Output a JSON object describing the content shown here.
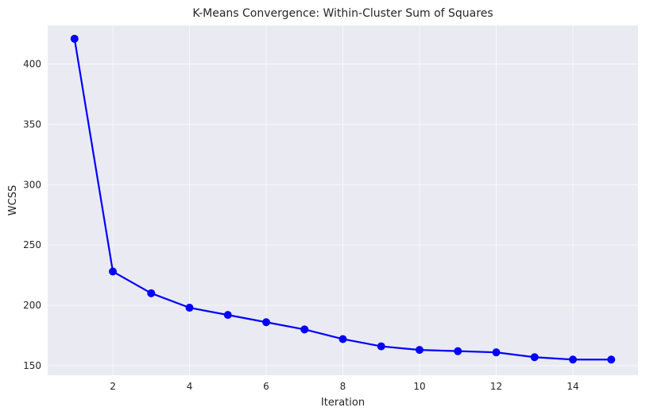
{
  "chart_data": {
    "type": "line",
    "title": "K-Means Convergence: Within-Cluster Sum of Squares",
    "xlabel": "Iteration",
    "ylabel": "WCSS",
    "xlim": [
      0.3,
      15.7
    ],
    "ylim": [
      142,
      432
    ],
    "xticks": [
      2,
      4,
      6,
      8,
      10,
      12,
      14
    ],
    "yticks": [
      150,
      200,
      250,
      300,
      350,
      400
    ],
    "grid": true,
    "series": [
      {
        "color": "#0000ff",
        "marker": "circle",
        "x": [
          1,
          2,
          3,
          4,
          5,
          6,
          7,
          8,
          9,
          10,
          11,
          12,
          13,
          14,
          15
        ],
        "y": [
          421,
          228,
          210,
          198,
          192,
          186,
          180,
          172,
          166,
          163,
          162,
          161,
          157,
          155,
          155
        ]
      }
    ],
    "colors": {
      "plot_background": "#eaeaf2",
      "grid": "#f7f7fb",
      "text": "#262626"
    }
  }
}
